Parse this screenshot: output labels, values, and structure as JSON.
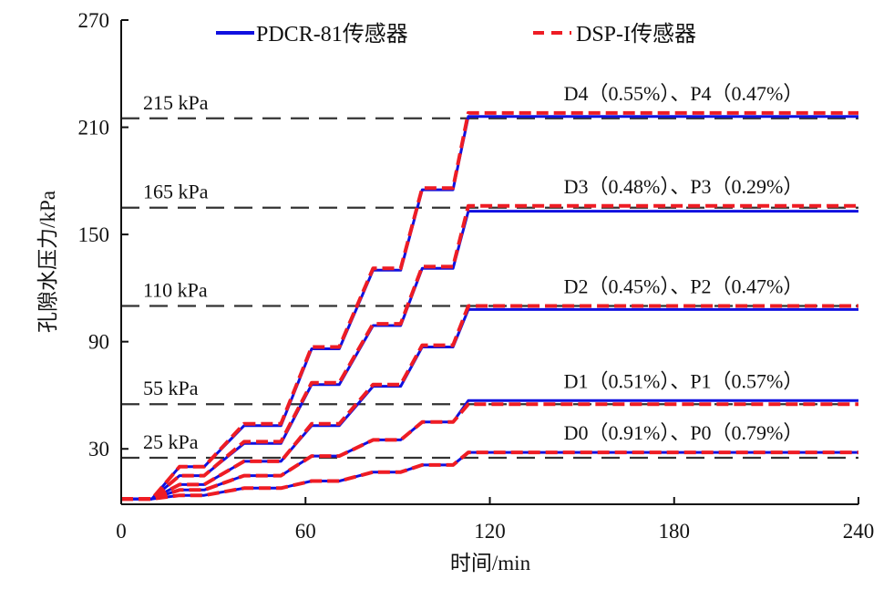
{
  "chart_data": {
    "type": "line",
    "title": "",
    "xlabel": "时间/min",
    "ylabel": "孔隙水压力/kPa",
    "xlim": [
      0,
      240
    ],
    "ylim": [
      0,
      270
    ],
    "xticks": [
      0,
      60,
      120,
      180,
      240
    ],
    "xtick_labels": [
      "0",
      "60",
      "120",
      "180",
      "240"
    ],
    "yticks": [
      30,
      90,
      150,
      210,
      270
    ],
    "ytick_labels": [
      "30",
      "90",
      "150",
      "210",
      "270"
    ],
    "grid": false,
    "legend": {
      "position": "top",
      "entries": [
        {
          "label": "PDCR-81传感器",
          "color": "#1010e0",
          "style": "solid"
        },
        {
          "label": "DSP-I传感器",
          "color": "#ee1c24",
          "style": "dashed"
        }
      ]
    },
    "reference_lines": [
      {
        "value": 215,
        "label": "215 kPa"
      },
      {
        "value": 165,
        "label": "165 kPa"
      },
      {
        "value": 110,
        "label": "110 kPa"
      },
      {
        "value": 55,
        "label": "55 kPa"
      },
      {
        "value": 25,
        "label": "25 kPa"
      }
    ],
    "curve_labels": [
      {
        "label": "D4（0.55%）、P4（0.47%）"
      },
      {
        "label": "D3（0.48%）、P3（0.29%）"
      },
      {
        "label": "D2（0.45%）、P2（0.47%）"
      },
      {
        "label": "D1（0.51%）、P1（0.57%）"
      },
      {
        "label": "D0（0.91%）、P0（0.79%）"
      }
    ],
    "series": [
      {
        "name": "PDCR-81传感器 4",
        "sensor": "PDCR-81传感器",
        "x": [
          0,
          10,
          19,
          27,
          40,
          52,
          62,
          71,
          82,
          91,
          98,
          108,
          113,
          240
        ],
        "y": [
          2,
          2,
          20,
          20,
          43,
          43,
          86,
          86,
          130,
          130,
          175,
          175,
          216,
          216
        ]
      },
      {
        "name": "DSP-I传感器 4",
        "sensor": "DSP-I传感器",
        "x": [
          0,
          10,
          19,
          27,
          40,
          52,
          62,
          71,
          82,
          91,
          98,
          108,
          113,
          240
        ],
        "y": [
          2,
          2,
          20,
          20,
          44,
          44,
          87,
          87,
          131,
          131,
          176,
          176,
          218,
          218
        ]
      },
      {
        "name": "PDCR-81传感器 3",
        "sensor": "PDCR-81传感器",
        "x": [
          0,
          10,
          19,
          27,
          40,
          52,
          62,
          71,
          82,
          91,
          98,
          108,
          113,
          240
        ],
        "y": [
          2,
          2,
          15,
          15,
          33,
          33,
          66,
          66,
          99,
          99,
          131,
          131,
          163,
          163
        ]
      },
      {
        "name": "DSP-I传感器 3",
        "sensor": "DSP-I传感器",
        "x": [
          0,
          10,
          19,
          27,
          40,
          52,
          62,
          71,
          82,
          91,
          98,
          108,
          113,
          240
        ],
        "y": [
          2,
          2,
          15,
          15,
          34,
          34,
          67,
          67,
          100,
          100,
          132,
          132,
          166,
          166
        ]
      },
      {
        "name": "PDCR-81传感器 2",
        "sensor": "PDCR-81传感器",
        "x": [
          0,
          10,
          19,
          27,
          40,
          52,
          62,
          71,
          82,
          91,
          98,
          108,
          113,
          240
        ],
        "y": [
          2,
          2,
          10,
          10,
          23,
          23,
          43,
          43,
          65,
          65,
          87,
          87,
          108,
          108
        ]
      },
      {
        "name": "DSP-I传感器 2",
        "sensor": "DSP-I传感器",
        "x": [
          0,
          10,
          19,
          27,
          40,
          52,
          62,
          71,
          82,
          91,
          98,
          108,
          113,
          240
        ],
        "y": [
          2,
          2,
          10,
          10,
          23,
          23,
          44,
          44,
          66,
          66,
          88,
          88,
          110,
          110
        ]
      },
      {
        "name": "PDCR-81传感器 1",
        "sensor": "PDCR-81传感器",
        "x": [
          0,
          10,
          19,
          27,
          40,
          52,
          62,
          71,
          82,
          91,
          98,
          108,
          113,
          240
        ],
        "y": [
          2,
          2,
          7,
          7,
          15,
          15,
          26,
          26,
          35,
          35,
          45,
          45,
          57,
          57
        ]
      },
      {
        "name": "DSP-I传感器 1",
        "sensor": "DSP-I传感器",
        "x": [
          0,
          10,
          19,
          27,
          40,
          52,
          62,
          71,
          82,
          91,
          98,
          108,
          113,
          240
        ],
        "y": [
          2,
          2,
          7,
          7,
          15,
          15,
          26,
          26,
          35,
          35,
          45,
          45,
          55,
          55
        ]
      },
      {
        "name": "PDCR-81传感器 0",
        "sensor": "PDCR-81传感器",
        "x": [
          0,
          10,
          19,
          27,
          40,
          52,
          62,
          71,
          82,
          91,
          98,
          108,
          113,
          240
        ],
        "y": [
          2,
          2,
          4,
          4,
          8,
          8,
          12,
          12,
          17,
          17,
          21,
          21,
          28,
          28
        ]
      },
      {
        "name": "DSP-I传感器 0",
        "sensor": "DSP-I传感器",
        "x": [
          0,
          10,
          19,
          27,
          40,
          52,
          62,
          71,
          82,
          91,
          98,
          108,
          113,
          240
        ],
        "y": [
          2,
          2,
          4,
          4,
          8,
          8,
          12,
          12,
          17,
          17,
          21,
          21,
          28,
          28
        ]
      }
    ]
  }
}
